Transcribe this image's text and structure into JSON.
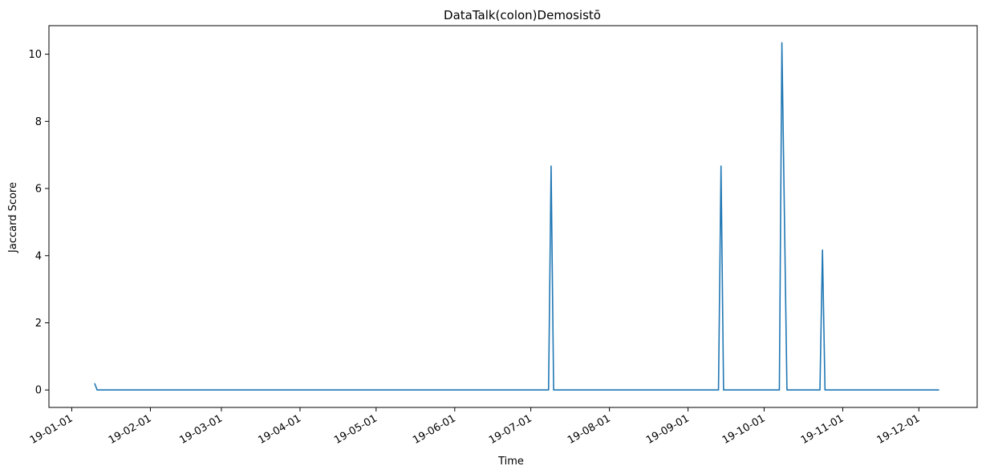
{
  "chart_data": {
    "type": "line",
    "title": "DataTalk(colon)Demosistō",
    "xlabel": "Time",
    "ylabel": "Jaccard Score",
    "x_tick_labels": [
      "19-01-01",
      "19-02-01",
      "19-03-01",
      "19-04-01",
      "19-05-01",
      "19-06-01",
      "19-07-01",
      "19-08-01",
      "19-09-01",
      "19-10-01",
      "19-11-01",
      "19-12-01"
    ],
    "y_ticks": [
      0,
      2,
      4,
      6,
      8,
      10
    ],
    "xlim": [
      "2018-12-23",
      "2019-12-24"
    ],
    "ylim": [
      -0.52,
      10.85
    ],
    "grid": false,
    "line_color": "#1f77b4",
    "series": [
      {
        "points": [
          {
            "x": "2019-01-10",
            "y": 0.2
          },
          {
            "x": "2019-01-11",
            "y": 0
          },
          {
            "x": "2019-07-08",
            "y": 0
          },
          {
            "x": "2019-07-09",
            "y": 6.67
          },
          {
            "x": "2019-07-10",
            "y": 0
          },
          {
            "x": "2019-09-13",
            "y": 0
          },
          {
            "x": "2019-09-14",
            "y": 6.67
          },
          {
            "x": "2019-09-15",
            "y": 0
          },
          {
            "x": "2019-10-07",
            "y": 0
          },
          {
            "x": "2019-10-08",
            "y": 10.34
          },
          {
            "x": "2019-10-10",
            "y": 0
          },
          {
            "x": "2019-10-23",
            "y": 0
          },
          {
            "x": "2019-10-24",
            "y": 4.17
          },
          {
            "x": "2019-10-25",
            "y": 0
          },
          {
            "x": "2019-12-09",
            "y": 0
          }
        ]
      }
    ]
  }
}
